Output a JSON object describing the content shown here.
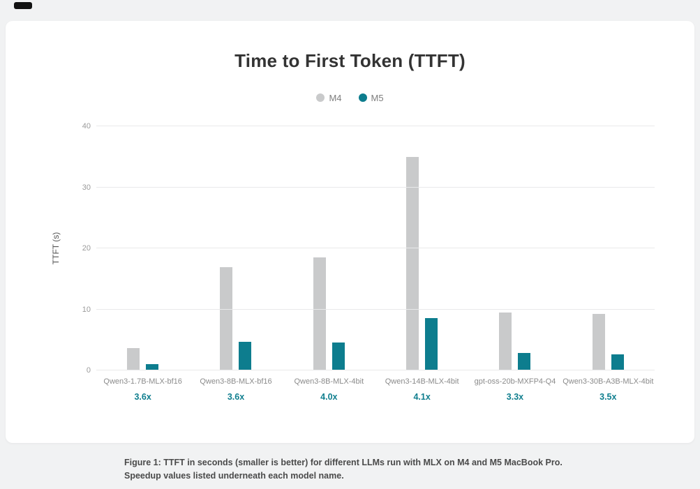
{
  "chart_data": {
    "type": "bar",
    "title": "Time to First Token (TTFT)",
    "ylabel": "TTFT (s)",
    "ylim": [
      0,
      40
    ],
    "yticks": [
      0,
      10,
      20,
      30,
      40
    ],
    "grid": "horizontal",
    "legend_position": "top-center",
    "legend": [
      {
        "name": "M4",
        "color": "#c9cacb"
      },
      {
        "name": "M5",
        "color": "#0d7d8e"
      }
    ],
    "categories": [
      "Qwen3-1.7B-MLX-bf16",
      "Qwen3-8B-MLX-bf16",
      "Qwen3-8B-MLX-4bit",
      "Qwen3-14B-MLX-4bit",
      "gpt-oss-20b-MXFP4-Q4",
      "Qwen3-30B-A3B-MLX-4bit"
    ],
    "speedups": [
      "3.6x",
      "3.6x",
      "4.0x",
      "4.1x",
      "3.3x",
      "3.5x"
    ],
    "series": [
      {
        "name": "M4",
        "color": "#c9cacb",
        "values": [
          3.7,
          16.9,
          18.5,
          35.0,
          9.5,
          9.3
        ]
      },
      {
        "name": "M5",
        "color": "#0d7d8e",
        "values": [
          1.0,
          4.7,
          4.6,
          8.6,
          2.9,
          2.6
        ]
      }
    ]
  },
  "colors": {
    "speedup_text": "#0f7e8e",
    "page_background": "#f1f2f3",
    "card_background": "#ffffff"
  },
  "caption": {
    "text": "Figure 1: TTFT in seconds (smaller is better) for different LLMs run with MLX on M4 and M5 MacBook Pro. Speedup values listed underneath each model name."
  }
}
